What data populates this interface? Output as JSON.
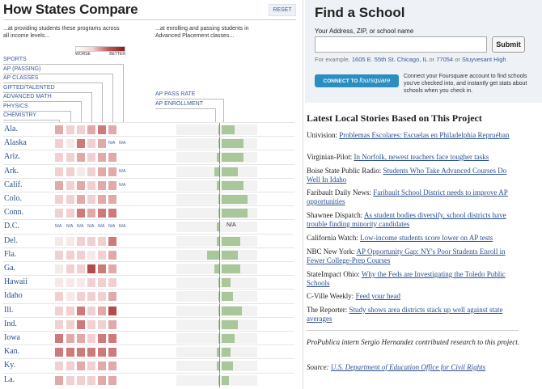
{
  "left": {
    "title": "How States Compare",
    "reset": "RESET",
    "subtitle_left": "...at providing students these programs across all income levels...",
    "subtitle_right": "...at enrolling and passing students in Advanced Placement classes...",
    "scale": {
      "worse": "WORSE",
      "better": "BETTER"
    },
    "columns": [
      "SPORTS",
      "AP (PASSING)",
      "AP CLASSES",
      "GIFTED/TALENTED",
      "ADVANCED MATH",
      "PHYSICS",
      "CHEMISTRY"
    ],
    "ap_columns": [
      "AP PASS RATE",
      "AP ENROLLMENT"
    ],
    "na_text": "N/A",
    "colors": {
      "c0": "#f6e9e9",
      "c1": "#f0d0d0",
      "c2": "#e2a9a9",
      "c3": "#cf7a7a",
      "c4": "#b54a4a",
      "ap": "#a9c79a"
    },
    "states": [
      {
        "name": "Ala.",
        "cells": [
          2,
          1,
          1,
          2,
          3,
          2,
          null
        ],
        "na": [],
        "ap": [
          -0.05,
          0.35
        ]
      },
      {
        "name": "Alaska",
        "cells": [
          1,
          0,
          3,
          1,
          2,
          null,
          null
        ],
        "na": [
          5,
          6
        ],
        "ap": [
          -0.05,
          0.6
        ]
      },
      {
        "name": "Ariz.",
        "cells": [
          1,
          1,
          2,
          1,
          2,
          2,
          null
        ],
        "na": [],
        "ap": [
          -0.1,
          0.6
        ]
      },
      {
        "name": "Ark.",
        "cells": [
          1,
          1,
          0,
          1,
          2,
          2,
          null
        ],
        "na": [
          6
        ],
        "ap": [
          -0.15,
          0.45
        ]
      },
      {
        "name": "Calif.",
        "cells": [
          2,
          1,
          2,
          1,
          2,
          2,
          null
        ],
        "na": [
          6
        ],
        "ap": [
          -0.1,
          0.6
        ]
      },
      {
        "name": "Colo.",
        "cells": [
          1,
          1,
          2,
          1,
          2,
          2,
          null
        ],
        "na": [],
        "ap": [
          -0.05,
          0.7
        ]
      },
      {
        "name": "Conn.",
        "cells": [
          1,
          1,
          3,
          2,
          3,
          3,
          null
        ],
        "na": [],
        "ap": [
          -0.05,
          0.7
        ]
      },
      {
        "name": "D.C.",
        "cells": [
          null,
          null,
          null,
          null,
          null,
          null,
          null
        ],
        "na": [
          0,
          1,
          2,
          3,
          4,
          5,
          6
        ],
        "ap": [
          -0.1,
          0
        ],
        "apna": true
      },
      {
        "name": "Del.",
        "cells": [
          0,
          0,
          1,
          1,
          1,
          3,
          null
        ],
        "na": [],
        "ap": [
          -0.1,
          0.5
        ]
      },
      {
        "name": "Fla.",
        "cells": [
          1,
          1,
          1,
          0,
          1,
          2,
          null
        ],
        "na": [],
        "ap": [
          -0.35,
          0.45
        ]
      },
      {
        "name": "Ga.",
        "cells": [
          0,
          1,
          1,
          4,
          3,
          2,
          null
        ],
        "na": [],
        "ap": [
          -0.15,
          0.5
        ]
      },
      {
        "name": "Hawaii",
        "cells": [
          0,
          0,
          0,
          1,
          1,
          1,
          null
        ],
        "na": [],
        "ap": [
          -0.05,
          0.25
        ]
      },
      {
        "name": "Idaho",
        "cells": [
          1,
          0,
          1,
          1,
          1,
          2,
          null
        ],
        "na": [],
        "ap": [
          -0.05,
          0.3
        ]
      },
      {
        "name": "Ill.",
        "cells": [
          1,
          1,
          3,
          1,
          2,
          4,
          null
        ],
        "na": [],
        "ap": [
          -0.05,
          0.55
        ]
      },
      {
        "name": "Ind.",
        "cells": [
          1,
          1,
          3,
          1,
          1,
          2,
          null
        ],
        "na": [],
        "ap": [
          -0.05,
          0.45
        ]
      },
      {
        "name": "Iowa",
        "cells": [
          3,
          2,
          2,
          1,
          3,
          3,
          null
        ],
        "na": [],
        "ap": [
          -0.05,
          0.35
        ]
      },
      {
        "name": "Kan.",
        "cells": [
          3,
          3,
          3,
          3,
          3,
          3,
          null
        ],
        "na": [],
        "ap": [
          -0.1,
          0.25
        ]
      },
      {
        "name": "Ky.",
        "cells": [
          1,
          1,
          2,
          1,
          2,
          2,
          null
        ],
        "na": [],
        "ap": [
          -0.1,
          0.3
        ]
      },
      {
        "name": "La.",
        "cells": [
          2,
          1,
          1,
          1,
          2,
          2,
          null
        ],
        "na": [],
        "ap": [
          -0.05,
          0.2
        ]
      }
    ]
  },
  "find": {
    "title": "Find a School",
    "address_label": "Your Address, ZIP, or school name",
    "input_value": "",
    "submit": "Submit",
    "example_prefix": "For example, ",
    "example1": "1605 E. 55th St. Chicago, IL",
    "or1": " or ",
    "example2": "77054",
    "or2": " or ",
    "example3": "Stuyvesant High",
    "foursquare_button_prefix": "CONNECT TO",
    "foursquare_button_brand": "foursquare",
    "foursquare_desc": "Connect your Foursquare account to find schools you've checked into, and instantly get stats about schools when you check in."
  },
  "stories": {
    "title": "Latest Local Stories Based on This Project",
    "items": [
      {
        "source": "Univision:",
        "link": "Problemas Escolares: Escuelas en Philadelphia Repruéban"
      },
      {
        "source": "Virginian-Pilot:",
        "link": "In Norfolk, newest teachers face tougher tasks"
      },
      {
        "source": "Boise State Public Radio:",
        "link": "Students Who Take Advanced Courses Do Well In Idaho"
      },
      {
        "source": "Faribault Daily News:",
        "link": "Faribault School District needs to improve AP opportunities"
      },
      {
        "source": "Shawnee Dispatch:",
        "link": "As student bodies diversify, school districts have trouble finding minority candidates"
      },
      {
        "source": "California Watch:",
        "link": "Low-income students score lower on AP tests"
      },
      {
        "source": "NBC New York:",
        "link": "AP Opportunity Gap: NY's Poor Students Enroll in Fewer College-Prep Courses"
      },
      {
        "source": "StateImpact Ohio:",
        "link": "Why the Feds are Investigating the Toledo Public Schools"
      },
      {
        "source": "C-Ville Weekly:",
        "link": "Feed your head"
      },
      {
        "source": "The Reporter:",
        "link": "Study shows area districts stack up well against state averages"
      }
    ],
    "credit": "ProPublica intern Sergio Hernandez contributed research to this project.",
    "source_label": "Source:",
    "source_link": "U.S. Department of Education Office for Civil Rights"
  }
}
